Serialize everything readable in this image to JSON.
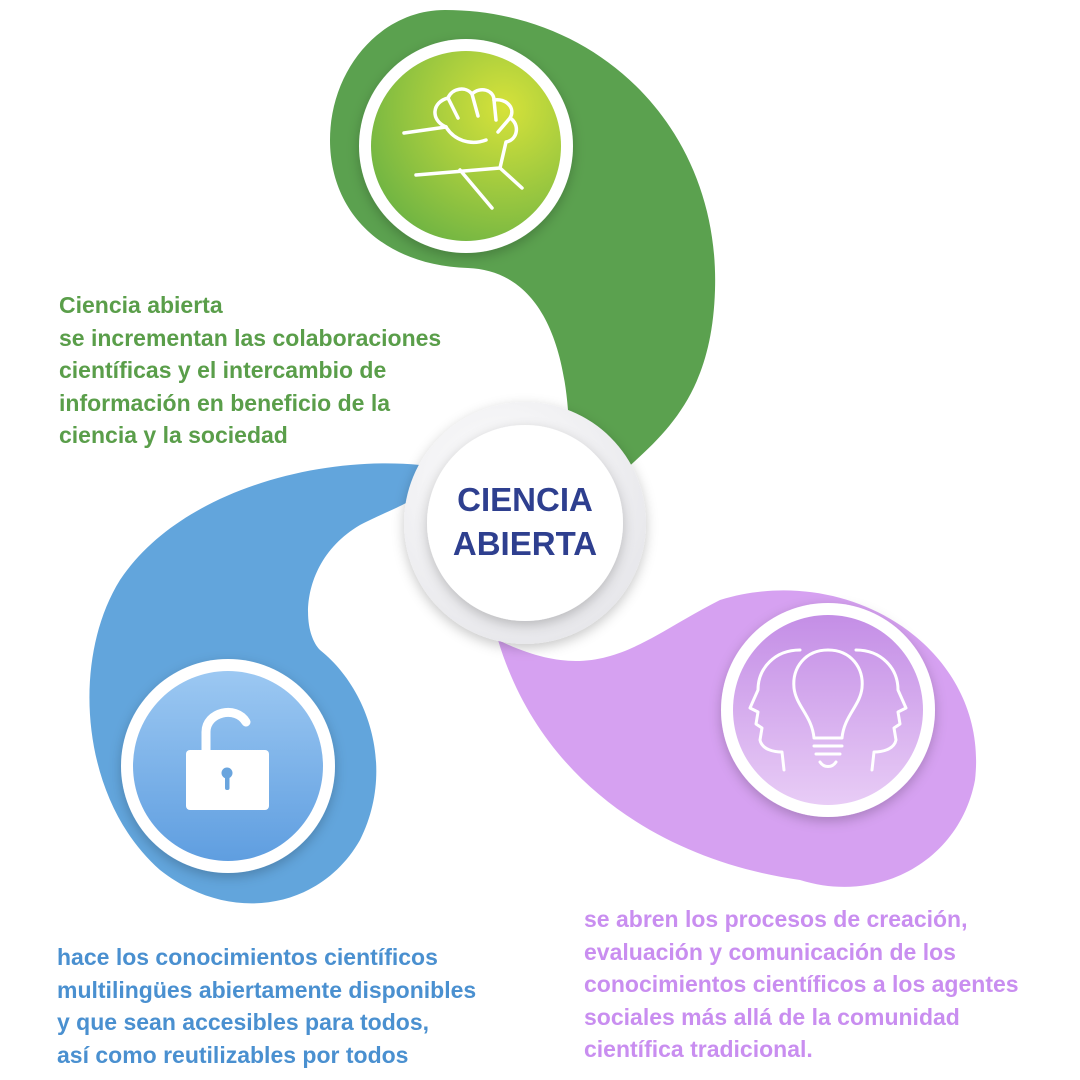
{
  "center": {
    "line1": "CIENCIA",
    "line2": "ABIERTA"
  },
  "segments": {
    "collaboration": {
      "icon": "handshake-icon",
      "color": "#5aa050",
      "lines": [
        "Ciencia abierta",
        "se incrementan las colaboraciones",
        "científicas y el intercambio de",
        "información en beneficio de la",
        "ciencia y la sociedad"
      ]
    },
    "access": {
      "icon": "unlocked-padlock-icon",
      "color": "#5fa6dc",
      "lines": [
        "hace los conocimientos científicos",
        "multilingües abiertamente disponibles",
        "y que sean accesibles para todos,",
        "así como reutilizables por todos"
      ]
    },
    "society": {
      "icon": "lightbulb-heads-icon",
      "color": "#d6a2f2",
      "lines": [
        "se abren los procesos de creación,",
        "evaluación y comunicación de los",
        "conocimientos científicos a los agentes",
        "sociales más allá de la comunidad",
        "científica tradicional."
      ]
    }
  }
}
